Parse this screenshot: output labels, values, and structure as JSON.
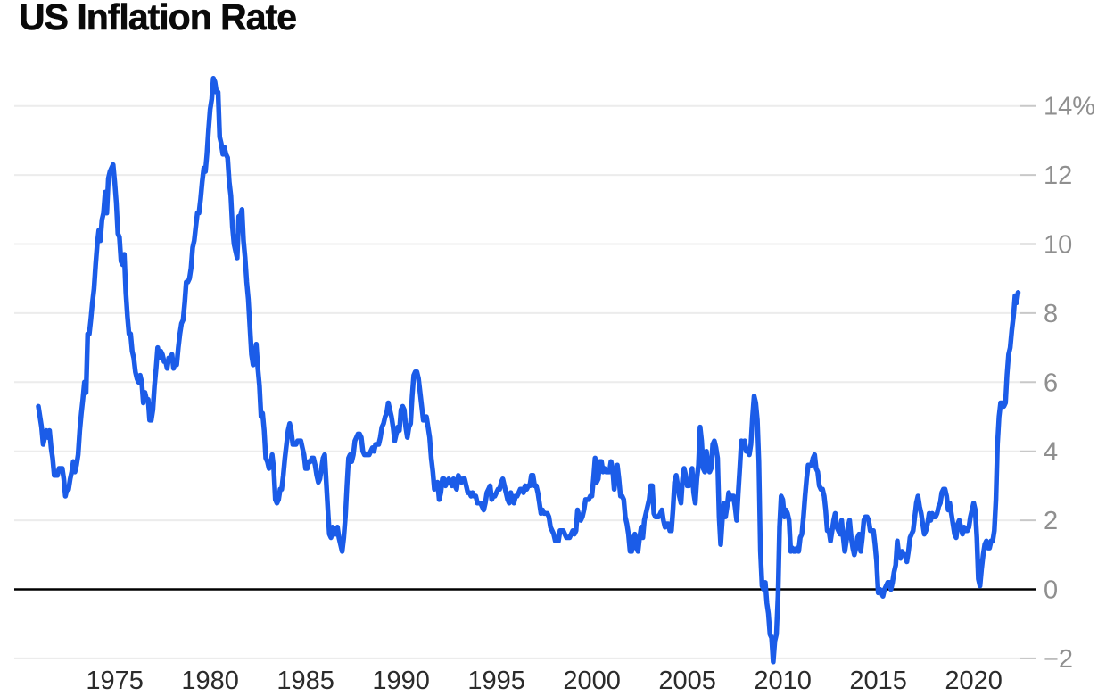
{
  "chart_data": {
    "type": "line",
    "title": "US Inflation Rate",
    "unit": "percent",
    "x_axis": {
      "label": "",
      "ticks": [
        1975,
        1980,
        1985,
        1990,
        1995,
        2000,
        2005,
        2010,
        2015,
        2020
      ],
      "range_years": [
        1971.0,
        2022.42
      ]
    },
    "y_axis": {
      "label": "",
      "ticks": [
        {
          "value": 14,
          "label": "14%"
        },
        {
          "value": 12,
          "label": "12"
        },
        {
          "value": 10,
          "label": "10"
        },
        {
          "value": 8,
          "label": "8"
        },
        {
          "value": 6,
          "label": "6"
        },
        {
          "value": 4,
          "label": "4"
        },
        {
          "value": 2,
          "label": "2"
        },
        {
          "value": 0,
          "label": "0"
        },
        {
          "value": -2,
          "label": "−2"
        }
      ],
      "ylim": [
        -2.6,
        15.2
      ],
      "grid": "horizontal",
      "zero_line": true,
      "labels_position": "right"
    },
    "legend": "none",
    "colors": {
      "line": "#1b5ce8",
      "gridline": "#ececec",
      "tick": "#c8c8c8",
      "zero_line": "#000000",
      "y_label": "#8f8f8f",
      "x_label": "#2b2b2b",
      "title": "#0a0a0a",
      "background": "#ffffff"
    },
    "series": [
      {
        "name": "US Inflation Rate",
        "frequency": "monthly",
        "start": {
          "year": 1971,
          "month": 1
        },
        "end": {
          "year": 2022,
          "month": 5
        },
        "values": [
          5.3,
          5.0,
          4.7,
          4.2,
          4.4,
          4.6,
          4.4,
          4.6,
          4.1,
          3.8,
          3.3,
          3.3,
          3.3,
          3.5,
          3.5,
          3.5,
          3.2,
          2.7,
          2.9,
          2.9,
          3.2,
          3.4,
          3.7,
          3.4,
          3.6,
          3.9,
          4.6,
          5.1,
          5.5,
          6.0,
          5.7,
          7.4,
          7.4,
          7.8,
          8.3,
          8.7,
          9.4,
          10.0,
          10.4,
          10.1,
          10.7,
          10.9,
          11.5,
          10.9,
          11.9,
          12.1,
          12.2,
          12.3,
          11.8,
          11.2,
          10.3,
          10.2,
          9.5,
          9.4,
          9.7,
          8.6,
          7.9,
          7.4,
          7.4,
          6.9,
          6.7,
          6.3,
          6.1,
          6.0,
          6.2,
          6.0,
          5.4,
          5.7,
          5.5,
          5.5,
          4.9,
          4.9,
          5.2,
          5.9,
          6.4,
          7.0,
          6.7,
          6.9,
          6.8,
          6.6,
          6.6,
          6.4,
          6.7,
          6.7,
          6.8,
          6.4,
          6.6,
          6.5,
          7.0,
          7.4,
          7.7,
          7.8,
          8.3,
          8.9,
          8.9,
          9.0,
          9.3,
          9.9,
          10.1,
          10.5,
          10.9,
          10.9,
          11.3,
          11.8,
          12.2,
          12.1,
          12.6,
          13.3,
          13.9,
          14.2,
          14.8,
          14.7,
          14.4,
          14.4,
          13.1,
          12.9,
          12.6,
          12.8,
          12.6,
          12.5,
          11.8,
          11.4,
          10.5,
          10.0,
          9.8,
          9.6,
          10.8,
          10.8,
          11.0,
          10.1,
          9.6,
          8.9,
          8.4,
          7.6,
          6.8,
          6.5,
          6.7,
          7.1,
          6.4,
          5.9,
          5.0,
          5.1,
          4.6,
          3.8,
          3.7,
          3.5,
          3.6,
          3.9,
          3.5,
          2.6,
          2.5,
          2.6,
          2.9,
          2.9,
          3.3,
          3.8,
          4.2,
          4.6,
          4.8,
          4.6,
          4.2,
          4.2,
          4.2,
          4.3,
          4.3,
          4.3,
          4.1,
          3.9,
          3.5,
          3.5,
          3.7,
          3.7,
          3.8,
          3.8,
          3.6,
          3.3,
          3.1,
          3.2,
          3.5,
          3.8,
          3.9,
          3.1,
          2.3,
          1.6,
          1.5,
          1.8,
          1.6,
          1.6,
          1.8,
          1.5,
          1.3,
          1.1,
          1.5,
          2.1,
          3.0,
          3.8,
          3.9,
          3.7,
          3.9,
          4.3,
          4.4,
          4.5,
          4.5,
          4.4,
          4.0,
          3.9,
          3.9,
          3.9,
          3.9,
          4.0,
          4.1,
          4.0,
          4.2,
          4.2,
          4.2,
          4.4,
          4.7,
          4.8,
          5.0,
          5.1,
          5.4,
          5.2,
          5.0,
          4.7,
          4.3,
          4.5,
          4.7,
          4.6,
          5.2,
          5.3,
          5.2,
          4.7,
          4.4,
          4.7,
          4.8,
          5.6,
          6.2,
          6.3,
          6.3,
          6.1,
          5.7,
          5.3,
          4.9,
          4.9,
          5.0,
          4.7,
          4.4,
          3.8,
          3.4,
          2.9,
          3.0,
          3.1,
          2.6,
          2.8,
          3.2,
          3.2,
          3.0,
          3.1,
          3.2,
          3.1,
          3.0,
          3.2,
          3.0,
          2.9,
          3.3,
          3.2,
          3.1,
          3.2,
          3.2,
          3.0,
          2.8,
          2.8,
          2.7,
          2.8,
          2.7,
          2.7,
          2.5,
          2.5,
          2.5,
          2.4,
          2.3,
          2.5,
          2.8,
          2.9,
          3.0,
          2.6,
          2.7,
          2.7,
          2.8,
          2.9,
          2.9,
          3.1,
          3.2,
          3.0,
          2.8,
          2.6,
          2.5,
          2.8,
          2.6,
          2.5,
          2.7,
          2.7,
          2.8,
          2.9,
          2.9,
          2.8,
          3.0,
          2.9,
          3.0,
          3.0,
          3.3,
          3.3,
          3.0,
          3.0,
          2.8,
          2.5,
          2.2,
          2.3,
          2.2,
          2.2,
          2.2,
          2.1,
          1.8,
          1.7,
          1.6,
          1.4,
          1.4,
          1.4,
          1.7,
          1.7,
          1.7,
          1.6,
          1.5,
          1.5,
          1.5,
          1.6,
          1.7,
          1.6,
          1.7,
          2.3,
          2.1,
          2.0,
          2.1,
          2.3,
          2.6,
          2.6,
          2.6,
          2.7,
          2.7,
          3.2,
          3.8,
          3.1,
          3.2,
          3.7,
          3.7,
          3.4,
          3.5,
          3.4,
          3.4,
          3.4,
          3.7,
          3.5,
          2.9,
          3.3,
          3.6,
          3.2,
          2.7,
          2.7,
          2.6,
          2.1,
          1.9,
          1.6,
          1.1,
          1.1,
          1.5,
          1.6,
          1.2,
          1.1,
          1.5,
          1.8,
          1.5,
          2.0,
          2.2,
          2.4,
          2.6,
          3.0,
          3.0,
          2.2,
          2.1,
          2.1,
          2.1,
          2.2,
          2.3,
          2.0,
          1.8,
          1.9,
          1.9,
          1.7,
          1.7,
          2.3,
          3.1,
          3.3,
          3.0,
          2.7,
          2.5,
          3.2,
          3.5,
          3.3,
          3.0,
          3.0,
          3.1,
          3.5,
          2.8,
          2.5,
          3.2,
          3.6,
          4.7,
          4.3,
          3.5,
          3.4,
          4.0,
          3.6,
          3.4,
          3.5,
          4.2,
          4.3,
          4.1,
          3.8,
          2.1,
          1.3,
          2.0,
          2.5,
          2.1,
          2.4,
          2.8,
          2.6,
          2.7,
          2.7,
          2.4,
          2.0,
          2.8,
          3.5,
          4.3,
          4.1,
          4.3,
          4.0,
          4.0,
          3.9,
          4.2,
          5.0,
          5.6,
          5.4,
          4.9,
          3.7,
          1.1,
          0.1,
          0.0,
          0.2,
          -0.4,
          -0.7,
          -1.3,
          -1.4,
          -2.1,
          -1.5,
          -1.3,
          -0.2,
          1.8,
          2.7,
          2.6,
          2.1,
          2.3,
          2.2,
          2.0,
          1.1,
          1.2,
          1.1,
          1.1,
          1.2,
          1.1,
          1.5,
          1.6,
          2.1,
          2.7,
          3.2,
          3.6,
          3.6,
          3.6,
          3.8,
          3.9,
          3.5,
          3.4,
          3.0,
          2.9,
          2.9,
          2.7,
          2.3,
          1.7,
          1.7,
          1.4,
          1.7,
          2.0,
          2.2,
          1.8,
          1.7,
          1.6,
          2.0,
          1.5,
          1.1,
          1.4,
          1.8,
          2.0,
          1.5,
          1.2,
          1.0,
          1.2,
          1.5,
          1.6,
          1.1,
          1.5,
          2.0,
          2.1,
          2.1,
          2.0,
          1.7,
          1.7,
          1.7,
          1.3,
          0.8,
          -0.1,
          0.0,
          -0.1,
          -0.2,
          0.0,
          0.1,
          0.2,
          0.2,
          0.0,
          0.2,
          0.5,
          0.7,
          1.4,
          1.0,
          0.9,
          1.1,
          1.0,
          1.0,
          0.8,
          1.1,
          1.5,
          1.6,
          1.7,
          2.1,
          2.5,
          2.7,
          2.4,
          2.2,
          1.9,
          1.6,
          1.7,
          1.9,
          2.2,
          2.0,
          2.2,
          2.1,
          2.1,
          2.2,
          2.4,
          2.5,
          2.8,
          2.9,
          2.9,
          2.7,
          2.3,
          2.5,
          2.2,
          1.9,
          1.6,
          1.5,
          1.9,
          2.0,
          1.8,
          1.6,
          1.8,
          1.7,
          1.7,
          1.8,
          2.1,
          2.3,
          2.5,
          2.3,
          1.5,
          0.3,
          0.1,
          0.6,
          1.0,
          1.3,
          1.4,
          1.2,
          1.2,
          1.4,
          1.4,
          1.7,
          2.6,
          4.2,
          5.0,
          5.4,
          5.4,
          5.3,
          5.4,
          6.2,
          6.8,
          7.0,
          7.5,
          7.9,
          8.5,
          8.3,
          8.6
        ]
      }
    ]
  }
}
